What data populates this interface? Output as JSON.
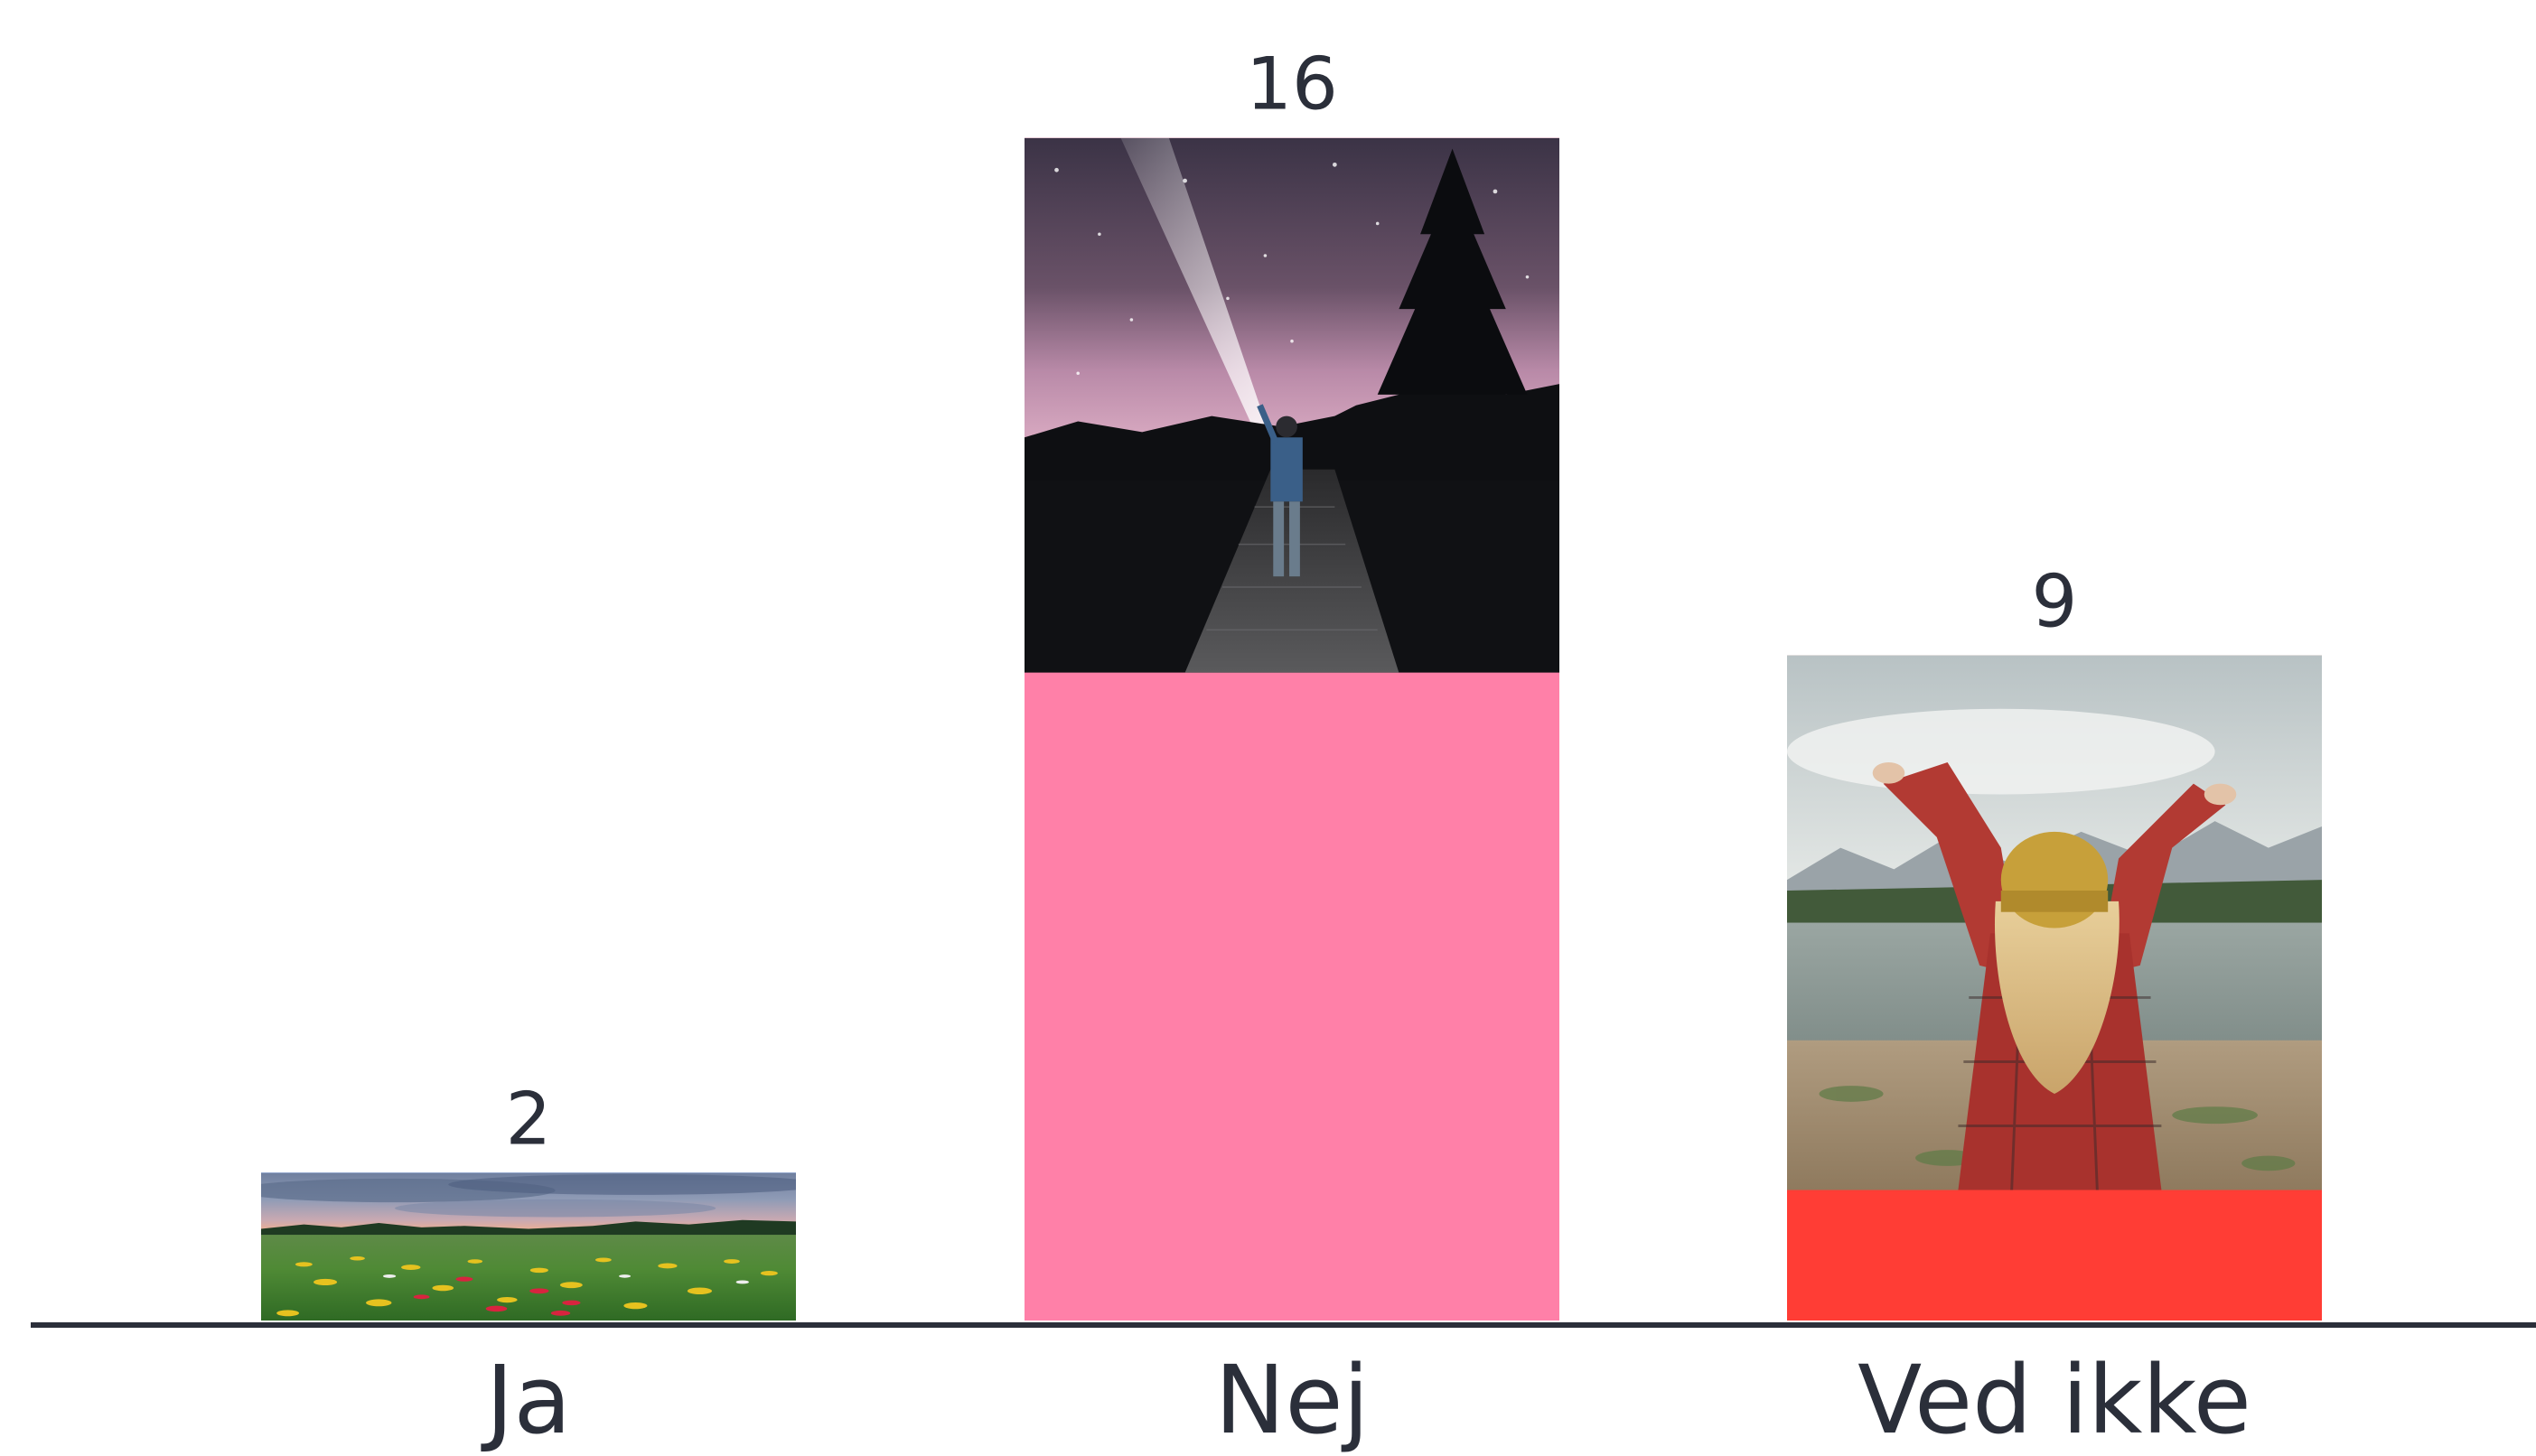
{
  "chart_data": {
    "type": "bar",
    "title": "",
    "xlabel": "",
    "ylabel": "",
    "categories": [
      "Ja",
      "Nej",
      "Ved ikke"
    ],
    "values": [
      2,
      16,
      9
    ],
    "ylim": [
      0,
      17.5
    ],
    "grid": false,
    "legend": "none",
    "bar_colors": [
      "#1a66ff",
      "#ff80a8",
      "#ff3d35"
    ],
    "bar_images": [
      "wildflower-meadow-photo",
      "night-sky-flashlight-photo",
      "woman-arms-raised-lake-photo"
    ],
    "axis_color": "#2b2f3a",
    "text_color": "#2b2f3a"
  }
}
